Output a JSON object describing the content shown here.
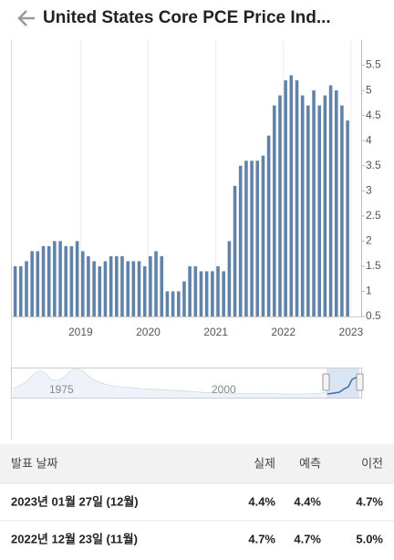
{
  "header": {
    "title": "United States Core PCE Price Ind..."
  },
  "chart_data": {
    "type": "bar",
    "color": "#6283a8",
    "x": [
      2018,
      2018.083,
      2018.167,
      2018.25,
      2018.333,
      2018.417,
      2018.5,
      2018.583,
      2018.667,
      2018.75,
      2018.833,
      2018.917,
      2019,
      2019.083,
      2019.167,
      2019.25,
      2019.333,
      2019.417,
      2019.5,
      2019.583,
      2019.667,
      2019.75,
      2019.833,
      2019.917,
      2020,
      2020.083,
      2020.167,
      2020.25,
      2020.333,
      2020.417,
      2020.5,
      2020.583,
      2020.667,
      2020.75,
      2020.833,
      2020.917,
      2021,
      2021.083,
      2021.167,
      2021.25,
      2021.333,
      2021.417,
      2021.5,
      2021.583,
      2021.667,
      2021.75,
      2021.833,
      2021.917,
      2022,
      2022.083,
      2022.167,
      2022.25,
      2022.333,
      2022.417,
      2022.5,
      2022.583,
      2022.667,
      2022.75,
      2022.833,
      2022.917
    ],
    "values": [
      1.5,
      1.5,
      1.6,
      1.8,
      1.8,
      1.9,
      1.9,
      2.0,
      2.0,
      1.9,
      1.9,
      2.0,
      1.8,
      1.7,
      1.6,
      1.5,
      1.6,
      1.7,
      1.7,
      1.7,
      1.6,
      1.6,
      1.6,
      1.5,
      1.7,
      1.8,
      1.7,
      1.0,
      1.0,
      1.0,
      1.2,
      1.5,
      1.5,
      1.4,
      1.4,
      1.4,
      1.5,
      1.4,
      2.0,
      3.1,
      3.5,
      3.6,
      3.6,
      3.6,
      3.7,
      4.1,
      4.7,
      4.9,
      5.2,
      5.3,
      5.2,
      4.9,
      4.7,
      5.0,
      4.7,
      4.9,
      5.1,
      5.0,
      4.7,
      4.4
    ],
    "xlim": [
      2017.97,
      2023.15
    ],
    "xticks": [
      2019,
      2020,
      2021,
      2022,
      2023
    ],
    "ylim": [
      0.5,
      6
    ],
    "yticks": [
      0.5,
      1,
      1.5,
      2,
      2.5,
      3,
      3.5,
      4,
      4.5,
      5,
      5.5
    ],
    "grid": "x"
  },
  "navigator": {
    "labels": [
      "1975",
      "2000"
    ]
  },
  "table": {
    "header": [
      "발표 날짜",
      "실제",
      "예측",
      "이전"
    ],
    "rows": [
      [
        "2023년 01월 27일 (12월)",
        "4.4%",
        "4.4%",
        "4.7%"
      ],
      [
        "2022년 12월 23일 (11월)",
        "4.7%",
        "4.7%",
        "5.0%"
      ]
    ]
  }
}
